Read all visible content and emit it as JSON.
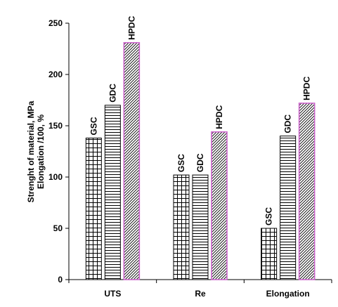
{
  "chart_data": {
    "type": "bar",
    "title": "",
    "xlabel": "",
    "ylabel": [
      "Strenght of material, MPa",
      "Elongation /100, %"
    ],
    "ylim": [
      0,
      250
    ],
    "yticks": [
      0,
      50,
      100,
      150,
      200,
      250
    ],
    "grid": false,
    "legend": "none",
    "categories": [
      "UTS",
      "Re",
      "Elongation"
    ],
    "series": [
      {
        "name": "GSC",
        "pattern": "grid",
        "border": "#000000",
        "values": [
          138,
          102,
          50
        ]
      },
      {
        "name": "GDC",
        "pattern": "horizontal",
        "border": "#000000",
        "values": [
          170,
          102,
          140
        ]
      },
      {
        "name": "HPDC",
        "pattern": "diagonal",
        "border": "#cc66cc",
        "values": [
          231,
          144,
          172
        ]
      }
    ]
  }
}
